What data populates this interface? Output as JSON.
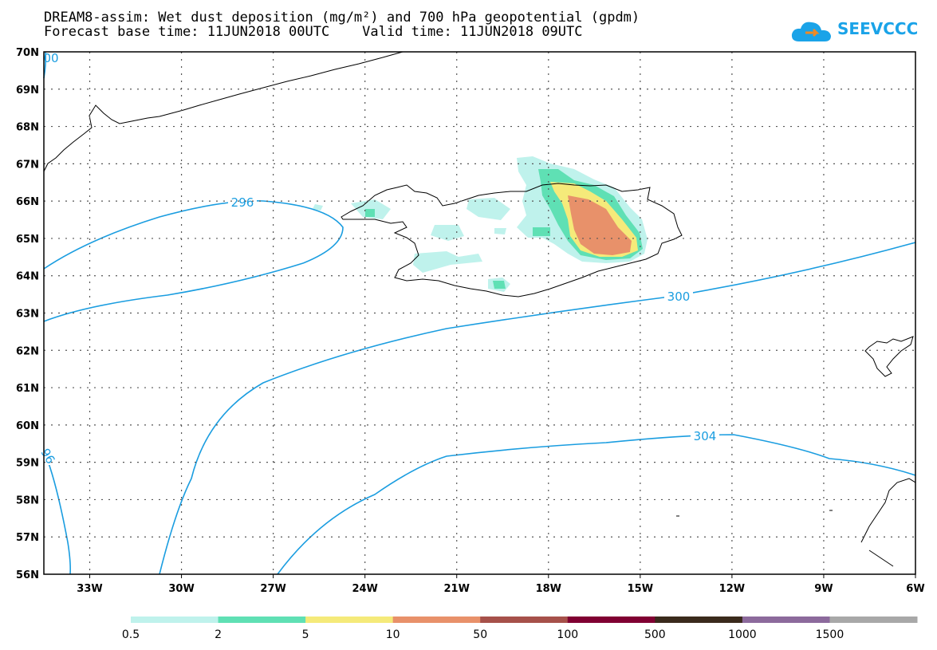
{
  "title": {
    "line1": "DREAM8-assim: Wet dust deposition (mg/m²) and 700 hPa geopotential (gpdm)",
    "line2": "Forecast base time: 11JUN2018 00UTC    Valid time: 11JUN2018 09UTC"
  },
  "logo": {
    "text": "SEEVCCC",
    "icon": "cloud-icon",
    "color": "#1aa3e8"
  },
  "map": {
    "lat_range": [
      56,
      70
    ],
    "lon_range": [
      -34.5,
      -6
    ],
    "lat_labels": [
      "70N",
      "69N",
      "68N",
      "67N",
      "66N",
      "65N",
      "64N",
      "63N",
      "62N",
      "61N",
      "60N",
      "59N",
      "58N",
      "57N",
      "56N"
    ],
    "lon_labels": [
      "33W",
      "30W",
      "27W",
      "24W",
      "21W",
      "18W",
      "15W",
      "12W",
      "9W",
      "6W"
    ],
    "contour_labels": [
      "296",
      "300",
      "304",
      "296",
      "96",
      "00"
    ],
    "contour_color": "#1a9de0"
  },
  "colorbar": {
    "colors": [
      "#bff2ec",
      "#5fe0b4",
      "#f5ea7a",
      "#e8916a",
      "#a6514a",
      "#800032",
      "#3a2a1c",
      "#8c6a9c",
      "#a8a8a8"
    ],
    "labels": [
      "0.5",
      "2",
      "5",
      "10",
      "50",
      "100",
      "500",
      "1000",
      "1500"
    ]
  }
}
